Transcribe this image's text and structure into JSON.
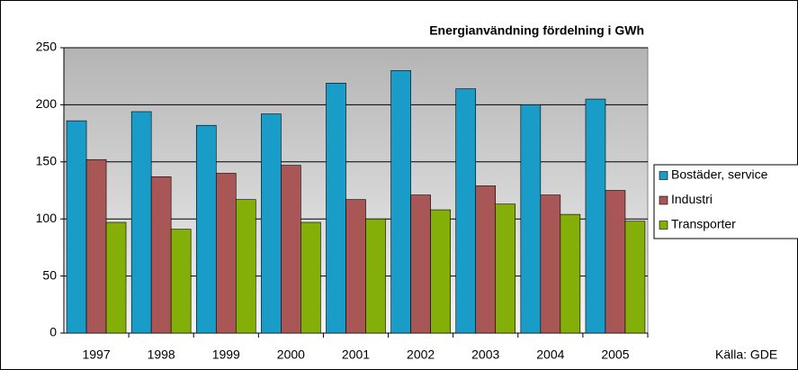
{
  "chart_data": {
    "type": "bar",
    "title": "Energianvändning fördelning i GWh",
    "categories": [
      "1997",
      "1998",
      "1999",
      "2000",
      "2001",
      "2002",
      "2003",
      "2004",
      "2005"
    ],
    "series": [
      {
        "name": "Bostäder, service",
        "color": "#1a9cc8",
        "values": [
          186,
          194,
          182,
          192,
          219,
          230,
          214,
          200,
          205
        ]
      },
      {
        "name": "Industri",
        "color": "#a95656",
        "values": [
          152,
          137,
          140,
          147,
          117,
          121,
          129,
          121,
          125
        ]
      },
      {
        "name": "Transporter",
        "color": "#84ae08",
        "values": [
          97,
          91,
          117,
          97,
          100,
          108,
          113,
          104,
          98
        ]
      }
    ],
    "ylim": [
      0,
      250
    ],
    "yticks": [
      0,
      50,
      100,
      150,
      200,
      250
    ],
    "grid": true,
    "legend": "right",
    "source": "Källa: GDE"
  }
}
